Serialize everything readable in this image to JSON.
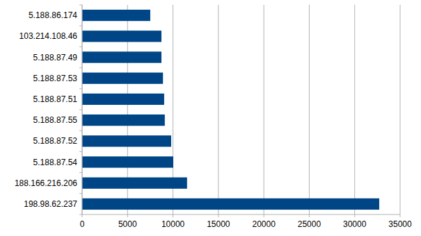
{
  "chart_data": {
    "type": "bar",
    "orientation": "horizontal",
    "categories": [
      "198.98.62.237",
      "188.166.216.206",
      "5.188.87.54",
      "5.188.87.52",
      "5.188.87.55",
      "5.188.87.51",
      "5.188.87.53",
      "5.188.87.49",
      "103.214.108.46",
      "5.188.86.174"
    ],
    "values": [
      32700,
      11550,
      10030,
      9800,
      9100,
      9030,
      8900,
      8730,
      8730,
      7500
    ],
    "color": "#004586",
    "xlim": [
      0,
      35000
    ],
    "xticks": [
      0,
      5000,
      10000,
      15000,
      20000,
      25000,
      30000,
      35000
    ],
    "grid": true
  }
}
